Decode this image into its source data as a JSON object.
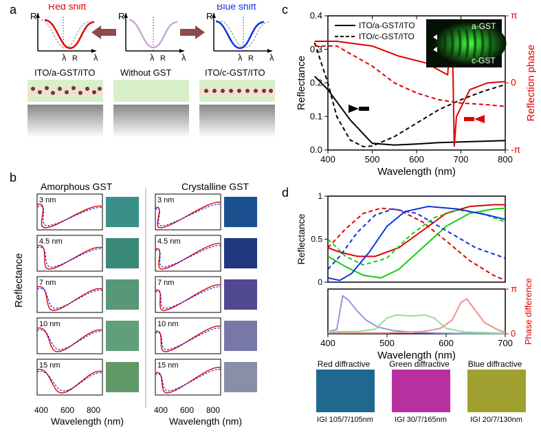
{
  "panelA": {
    "label": "a",
    "schematics": {
      "left": {
        "title": "Red shift",
        "caption": "ITO/a-GST/ITO",
        "arrow_color": "#8b4b4b",
        "curve_color": "#e00000"
      },
      "middle": {
        "title": "",
        "caption": "Without GST",
        "curve_color": "#c8a8d8"
      },
      "right": {
        "title": "Blue shift",
        "caption": "ITO/c-GST/ITO",
        "arrow_color": "#8b4b4b",
        "curve_color": "#1030e0"
      }
    },
    "ito_color": "#d8f0c8",
    "gst_color": "#f0e0d0",
    "dot_color": "#703838",
    "substrate_top": "#888888",
    "lambda_label": "λR",
    "x_label": "λ",
    "y_label": "R"
  },
  "panelB": {
    "label": "b",
    "left_title": "Amorphous GST",
    "right_title": "Crystalline GST",
    "thicknesses": [
      "3 nm",
      "4.5 nm",
      "7 nm",
      "10 nm",
      "15 nm"
    ],
    "swatch_colors_amorphous": [
      "#3a9088",
      "#3a8878",
      "#589878",
      "#60a078",
      "#609868"
    ],
    "swatch_colors_crystalline": [
      "#1a5090",
      "#203880",
      "#504890",
      "#7878a8",
      "#8890a8"
    ],
    "line_colors": {
      "sim": "#e00000",
      "exp": "#2020e0"
    },
    "xlabel": "Wavelength (nm)",
    "ylabel": "Reflectance",
    "xlim": [
      400,
      800
    ]
  },
  "panelC": {
    "label": "c",
    "legend": {
      "solid": "ITO/a-GST/ITO",
      "dashed": "ITO/c-GST/ITO"
    },
    "xlabel": "Wavelength (nm)",
    "ylabel_left": "Reflectance",
    "ylabel_right": "Reflection phase",
    "xlim": [
      400,
      800
    ],
    "xtick_step": 100,
    "ylim_left": [
      0,
      0.4
    ],
    "ytick_left_step": 0.1,
    "ytick_right": [
      "-π",
      "0",
      "π"
    ],
    "left_color": "#000000",
    "right_color": "#e00000",
    "inset": {
      "bg": "#041004",
      "fringe_color": "#30e030",
      "labels": [
        "a-GST",
        "c-GST"
      ]
    },
    "curves": {
      "refl_a": [
        [
          370,
          0.22
        ],
        [
          400,
          0.18
        ],
        [
          450,
          0.09
        ],
        [
          500,
          0.02
        ],
        [
          550,
          0.015
        ],
        [
          600,
          0.018
        ],
        [
          650,
          0.022
        ],
        [
          700,
          0.024
        ],
        [
          750,
          0.026
        ],
        [
          800,
          0.028
        ]
      ],
      "refl_c": [
        [
          370,
          0.32
        ],
        [
          400,
          0.2
        ],
        [
          420,
          0.1
        ],
        [
          450,
          0.03
        ],
        [
          480,
          0.01
        ],
        [
          500,
          0.012
        ],
        [
          550,
          0.04
        ],
        [
          600,
          0.08
        ],
        [
          650,
          0.12
        ],
        [
          700,
          0.15
        ],
        [
          750,
          0.175
        ],
        [
          800,
          0.195
        ]
      ],
      "phase_a": [
        [
          370,
          0.62
        ],
        [
          420,
          0.62
        ],
        [
          500,
          0.55
        ],
        [
          560,
          0.4
        ],
        [
          620,
          0.3
        ],
        [
          670,
          0.12
        ],
        [
          680,
          0.95
        ],
        [
          685,
          -0.95
        ],
        [
          690,
          -0.5
        ],
        [
          720,
          -0.1
        ],
        [
          760,
          0.0
        ],
        [
          800,
          0.02
        ]
      ],
      "phase_c": [
        [
          370,
          0.55
        ],
        [
          420,
          0.55
        ],
        [
          460,
          0.4
        ],
        [
          500,
          0.25
        ],
        [
          550,
          0.0
        ],
        [
          600,
          -0.15
        ],
        [
          650,
          -0.25
        ],
        [
          700,
          -0.3
        ],
        [
          750,
          -0.32
        ],
        [
          800,
          -0.35
        ]
      ]
    }
  },
  "panelD": {
    "label": "d",
    "xlabel": "Wavelength (nm)",
    "ylabel_top": "Reflectance",
    "ylabel_bottom": "Phase difference",
    "xlim": [
      400,
      700
    ],
    "xtick_step": 100,
    "ylim_top": [
      0,
      1
    ],
    "ytick_top_step": 0.5,
    "ytick_bottom": [
      "0",
      "π"
    ],
    "colors": {
      "red": "#e00000",
      "green": "#10d010",
      "blue": "#1030e0"
    },
    "phase_colors": {
      "red": "#f09088",
      "green": "#90e090",
      "blue": "#9098e0"
    },
    "curves_top": {
      "red_solid": [
        [
          400,
          0.4
        ],
        [
          420,
          0.35
        ],
        [
          450,
          0.3
        ],
        [
          480,
          0.3
        ],
        [
          520,
          0.4
        ],
        [
          560,
          0.6
        ],
        [
          600,
          0.8
        ],
        [
          640,
          0.88
        ],
        [
          680,
          0.9
        ],
        [
          700,
          0.9
        ]
      ],
      "red_dash": [
        [
          400,
          0.4
        ],
        [
          430,
          0.62
        ],
        [
          460,
          0.8
        ],
        [
          490,
          0.86
        ],
        [
          520,
          0.84
        ],
        [
          560,
          0.7
        ],
        [
          600,
          0.48
        ],
        [
          640,
          0.25
        ],
        [
          680,
          0.08
        ],
        [
          700,
          0.02
        ]
      ],
      "green_solid": [
        [
          400,
          0.3
        ],
        [
          430,
          0.18
        ],
        [
          460,
          0.08
        ],
        [
          490,
          0.05
        ],
        [
          520,
          0.15
        ],
        [
          560,
          0.4
        ],
        [
          600,
          0.65
        ],
        [
          640,
          0.8
        ],
        [
          680,
          0.85
        ],
        [
          700,
          0.86
        ]
      ],
      "green_dash": [
        [
          400,
          0.5
        ],
        [
          430,
          0.3
        ],
        [
          460,
          0.2
        ],
        [
          500,
          0.28
        ],
        [
          540,
          0.55
        ],
        [
          580,
          0.75
        ],
        [
          620,
          0.84
        ],
        [
          660,
          0.8
        ],
        [
          700,
          0.7
        ]
      ],
      "blue_solid": [
        [
          400,
          0.05
        ],
        [
          420,
          0.02
        ],
        [
          440,
          0.1
        ],
        [
          470,
          0.35
        ],
        [
          500,
          0.65
        ],
        [
          530,
          0.82
        ],
        [
          570,
          0.88
        ],
        [
          620,
          0.85
        ],
        [
          670,
          0.78
        ],
        [
          700,
          0.73
        ]
      ],
      "blue_dash": [
        [
          400,
          0.15
        ],
        [
          420,
          0.3
        ],
        [
          450,
          0.58
        ],
        [
          480,
          0.78
        ],
        [
          510,
          0.85
        ],
        [
          550,
          0.8
        ],
        [
          600,
          0.6
        ],
        [
          650,
          0.4
        ],
        [
          700,
          0.28
        ]
      ]
    },
    "curves_bottom": {
      "blue": [
        [
          400,
          0.05
        ],
        [
          415,
          0.1
        ],
        [
          425,
          0.85
        ],
        [
          435,
          0.75
        ],
        [
          450,
          0.5
        ],
        [
          465,
          0.3
        ],
        [
          485,
          0.15
        ],
        [
          510,
          0.07
        ],
        [
          550,
          0.03
        ],
        [
          600,
          0.01
        ],
        [
          700,
          0.0
        ]
      ],
      "green": [
        [
          400,
          0.05
        ],
        [
          450,
          0.05
        ],
        [
          480,
          0.1
        ],
        [
          500,
          0.35
        ],
        [
          515,
          0.42
        ],
        [
          540,
          0.4
        ],
        [
          565,
          0.42
        ],
        [
          580,
          0.35
        ],
        [
          600,
          0.12
        ],
        [
          630,
          0.04
        ],
        [
          700,
          0.01
        ]
      ],
      "red": [
        [
          400,
          0.02
        ],
        [
          500,
          0.02
        ],
        [
          560,
          0.05
        ],
        [
          590,
          0.12
        ],
        [
          610,
          0.3
        ],
        [
          625,
          0.7
        ],
        [
          635,
          0.78
        ],
        [
          645,
          0.6
        ],
        [
          665,
          0.25
        ],
        [
          690,
          0.07
        ],
        [
          700,
          0.04
        ]
      ]
    },
    "swatches": [
      {
        "title": "Red diffractive",
        "caption": "IGI 105/7/105nm",
        "color": "#206890"
      },
      {
        "title": "Green diffractive",
        "caption": "IGI 30/7/165nm",
        "color": "#b830a0"
      },
      {
        "title": "Blue diffractive",
        "caption": "IGI 20/7/130nm",
        "color": "#a0a030"
      }
    ]
  }
}
